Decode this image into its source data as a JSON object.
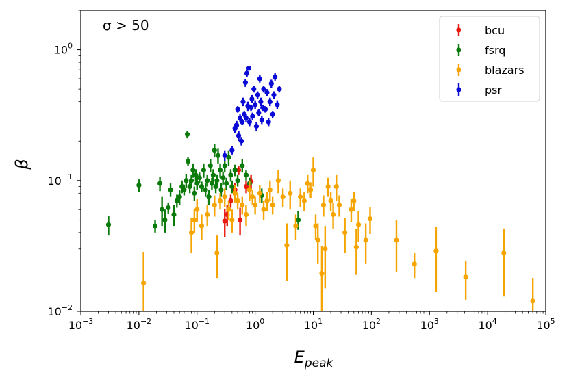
{
  "chart_data": {
    "type": "scatter",
    "xscale": "log",
    "yscale": "log",
    "xlim": [
      0.001,
      100000
    ],
    "ylim": [
      0.01,
      2
    ],
    "xlabel": "E_peak",
    "ylabel": "β",
    "annotation": "σ > 50",
    "legend_position": "top-right",
    "x_ticks": [
      {
        "value": 0.001,
        "mant": "10",
        "exp": "−3"
      },
      {
        "value": 0.01,
        "mant": "10",
        "exp": "−2"
      },
      {
        "value": 0.1,
        "mant": "10",
        "exp": "−1"
      },
      {
        "value": 1,
        "mant": "10",
        "exp": "0"
      },
      {
        "value": 10,
        "mant": "10",
        "exp": "1"
      },
      {
        "value": 100,
        "mant": "10",
        "exp": "2"
      },
      {
        "value": 1000,
        "mant": "10",
        "exp": "3"
      },
      {
        "value": 10000,
        "mant": "10",
        "exp": "4"
      },
      {
        "value": 100000,
        "mant": "10",
        "exp": "5"
      }
    ],
    "y_ticks": [
      {
        "value": 0.01,
        "mant": "10",
        "exp": "−2"
      },
      {
        "value": 0.1,
        "mant": "10",
        "exp": "−1"
      },
      {
        "value": 1,
        "mant": "10",
        "exp": "0"
      }
    ],
    "series": [
      {
        "name": "bcu",
        "color": "#e8190f",
        "points": [
          [
            0.3,
            0.049,
            0.012
          ],
          [
            0.33,
            0.055,
            0.01
          ],
          [
            0.55,
            0.05,
            0.012
          ],
          [
            0.52,
            0.12,
            0.01
          ],
          [
            0.7,
            0.09,
            0.01
          ],
          [
            0.85,
            0.098,
            0.012
          ],
          [
            0.45,
            0.085,
            0.01
          ],
          [
            0.38,
            0.07,
            0.008
          ]
        ]
      },
      {
        "name": "fsrq",
        "color": "#0a7a0a",
        "points": [
          [
            0.003,
            0.046,
            0.008
          ],
          [
            0.01,
            0.092,
            0.01
          ],
          [
            0.019,
            0.045,
            0.005
          ],
          [
            0.023,
            0.095,
            0.012
          ],
          [
            0.025,
            0.06,
            0.015
          ],
          [
            0.028,
            0.05,
            0.01
          ],
          [
            0.032,
            0.062,
            0.006
          ],
          [
            0.035,
            0.085,
            0.01
          ],
          [
            0.04,
            0.055,
            0.01
          ],
          [
            0.045,
            0.07,
            0.008
          ],
          [
            0.05,
            0.075,
            0.01
          ],
          [
            0.055,
            0.09,
            0.01
          ],
          [
            0.06,
            0.085,
            0.008
          ],
          [
            0.065,
            0.1,
            0.012
          ],
          [
            0.068,
            0.225,
            0.015
          ],
          [
            0.07,
            0.14,
            0.01
          ],
          [
            0.075,
            0.09,
            0.01
          ],
          [
            0.08,
            0.1,
            0.01
          ],
          [
            0.085,
            0.12,
            0.015
          ],
          [
            0.09,
            0.08,
            0.01
          ],
          [
            0.095,
            0.11,
            0.012
          ],
          [
            0.1,
            0.095,
            0.01
          ],
          [
            0.11,
            0.105,
            0.01
          ],
          [
            0.12,
            0.09,
            0.008
          ],
          [
            0.13,
            0.12,
            0.015
          ],
          [
            0.14,
            0.085,
            0.01
          ],
          [
            0.15,
            0.1,
            0.01
          ],
          [
            0.16,
            0.075,
            0.01
          ],
          [
            0.17,
            0.13,
            0.015
          ],
          [
            0.18,
            0.095,
            0.01
          ],
          [
            0.19,
            0.11,
            0.012
          ],
          [
            0.2,
            0.17,
            0.02
          ],
          [
            0.21,
            0.09,
            0.01
          ],
          [
            0.22,
            0.1,
            0.01
          ],
          [
            0.23,
            0.155,
            0.02
          ],
          [
            0.25,
            0.12,
            0.015
          ],
          [
            0.26,
            0.085,
            0.01
          ],
          [
            0.28,
            0.105,
            0.012
          ],
          [
            0.3,
            0.13,
            0.015
          ],
          [
            0.32,
            0.095,
            0.01
          ],
          [
            0.35,
            0.15,
            0.02
          ],
          [
            0.38,
            0.11,
            0.012
          ],
          [
            0.4,
            0.09,
            0.01
          ],
          [
            0.45,
            0.12,
            0.012
          ],
          [
            0.5,
            0.1,
            0.01
          ],
          [
            0.6,
            0.13,
            0.015
          ],
          [
            0.7,
            0.11,
            0.01
          ],
          [
            0.8,
            0.095,
            0.01
          ],
          [
            1.3,
            0.077,
            0.01
          ],
          [
            5.5,
            0.05,
            0.008
          ]
        ]
      },
      {
        "name": "blazars",
        "color": "#f5a400",
        "points": [
          [
            0.012,
            0.0165,
            0.012
          ],
          [
            0.08,
            0.04,
            0.012
          ],
          [
            0.09,
            0.05,
            0.01
          ],
          [
            0.1,
            0.06,
            0.012
          ],
          [
            0.12,
            0.045,
            0.01
          ],
          [
            0.15,
            0.055,
            0.01
          ],
          [
            0.2,
            0.065,
            0.012
          ],
          [
            0.22,
            0.028,
            0.01
          ],
          [
            0.25,
            0.07,
            0.01
          ],
          [
            0.3,
            0.075,
            0.012
          ],
          [
            0.35,
            0.06,
            0.01
          ],
          [
            0.4,
            0.05,
            0.01
          ],
          [
            0.45,
            0.08,
            0.012
          ],
          [
            0.5,
            0.07,
            0.01
          ],
          [
            0.6,
            0.065,
            0.01
          ],
          [
            0.7,
            0.055,
            0.01
          ],
          [
            0.8,
            0.085,
            0.015
          ],
          [
            0.9,
            0.075,
            0.01
          ],
          [
            1.0,
            0.065,
            0.01
          ],
          [
            1.2,
            0.08,
            0.012
          ],
          [
            1.4,
            0.06,
            0.01
          ],
          [
            1.6,
            0.07,
            0.012
          ],
          [
            1.8,
            0.085,
            0.015
          ],
          [
            2.0,
            0.065,
            0.01
          ],
          [
            2.5,
            0.1,
            0.02
          ],
          [
            3.0,
            0.075,
            0.012
          ],
          [
            3.5,
            0.032,
            0.015
          ],
          [
            4.0,
            0.08,
            0.02
          ],
          [
            5.0,
            0.045,
            0.01
          ],
          [
            6.0,
            0.075,
            0.012
          ],
          [
            7.0,
            0.07,
            0.012
          ],
          [
            8.0,
            0.095,
            0.015
          ],
          [
            9.0,
            0.085,
            0.012
          ],
          [
            10.0,
            0.12,
            0.03
          ],
          [
            11.0,
            0.045,
            0.01
          ],
          [
            12.0,
            0.035,
            0.012
          ],
          [
            14.0,
            0.0195,
            0.012
          ],
          [
            15.0,
            0.065,
            0.012
          ],
          [
            16.0,
            0.03,
            0.015
          ],
          [
            18.0,
            0.09,
            0.015
          ],
          [
            20.0,
            0.07,
            0.012
          ],
          [
            22.0,
            0.055,
            0.012
          ],
          [
            25.0,
            0.09,
            0.02
          ],
          [
            28.0,
            0.065,
            0.012
          ],
          [
            35.0,
            0.04,
            0.012
          ],
          [
            45.0,
            0.06,
            0.012
          ],
          [
            50.0,
            0.07,
            0.012
          ],
          [
            55.0,
            0.031,
            0.012
          ],
          [
            60.0,
            0.046,
            0.012
          ],
          [
            80.0,
            0.035,
            0.012
          ],
          [
            95.0,
            0.051,
            0.012
          ],
          [
            270.0,
            0.035,
            0.015
          ],
          [
            550.0,
            0.023,
            0.005
          ],
          [
            1300.0,
            0.029,
            0.015
          ],
          [
            4200.0,
            0.0183,
            0.006
          ],
          [
            19000.0,
            0.028,
            0.015
          ],
          [
            60000.0,
            0.012,
            0.006
          ]
        ]
      },
      {
        "name": "psr",
        "color": "#0a0ad6",
        "points": [
          [
            0.3,
            0.155,
            0.015
          ],
          [
            0.4,
            0.17,
            0.012
          ],
          [
            0.45,
            0.25,
            0.02
          ],
          [
            0.48,
            0.265,
            0.02
          ],
          [
            0.5,
            0.35,
            0.02
          ],
          [
            0.55,
            0.3,
            0.02
          ],
          [
            0.6,
            0.28,
            0.015
          ],
          [
            0.62,
            0.4,
            0.03
          ],
          [
            0.65,
            0.32,
            0.02
          ],
          [
            0.68,
            0.56,
            0.04
          ],
          [
            0.7,
            0.3,
            0.02
          ],
          [
            0.72,
            0.66,
            0.04
          ],
          [
            0.75,
            0.37,
            0.03
          ],
          [
            0.78,
            0.72,
            0.03
          ],
          [
            0.8,
            0.28,
            0.02
          ],
          [
            0.85,
            0.36,
            0.02
          ],
          [
            0.9,
            0.31,
            0.02
          ],
          [
            0.95,
            0.5,
            0.03
          ],
          [
            1.0,
            0.38,
            0.03
          ],
          [
            1.05,
            0.26,
            0.02
          ],
          [
            1.1,
            0.45,
            0.03
          ],
          [
            1.15,
            0.33,
            0.02
          ],
          [
            1.2,
            0.6,
            0.04
          ],
          [
            1.25,
            0.4,
            0.03
          ],
          [
            1.3,
            0.29,
            0.02
          ],
          [
            1.4,
            0.5,
            0.03
          ],
          [
            1.5,
            0.35,
            0.02
          ],
          [
            1.6,
            0.47,
            0.03
          ],
          [
            1.7,
            0.28,
            0.02
          ],
          [
            1.8,
            0.4,
            0.03
          ],
          [
            1.9,
            0.55,
            0.04
          ],
          [
            2.0,
            0.32,
            0.02
          ],
          [
            2.1,
            0.45,
            0.03
          ],
          [
            2.2,
            0.62,
            0.04
          ],
          [
            2.4,
            0.38,
            0.03
          ],
          [
            2.6,
            0.5,
            0.03
          ],
          [
            0.58,
            0.2,
            0.015
          ],
          [
            0.52,
            0.22,
            0.02
          ],
          [
            0.88,
            0.42,
            0.03
          ],
          [
            1.35,
            0.36,
            0.02
          ]
        ]
      }
    ]
  }
}
